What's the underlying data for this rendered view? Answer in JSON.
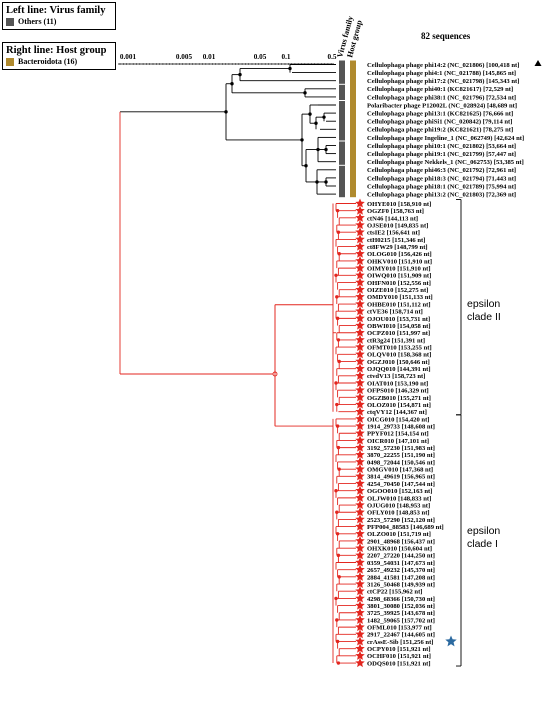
{
  "legend_left": {
    "title": "Left line: Virus family",
    "item_label": "Others (11)",
    "item_color": "#555555"
  },
  "legend_right": {
    "title": "Right line: Host group",
    "item_label": "Bacteroidota (16)",
    "item_color": "#b08a2e"
  },
  "sequence_count": "82 sequences",
  "column_headers": [
    "Virus family",
    "Host group"
  ],
  "scale_ticks": [
    "0.001",
    "0.005",
    "0.01",
    "0.05",
    "0.1",
    "0.5"
  ],
  "top_clade_leaves": [
    "Cellulophaga phage phi14:2 (NC_021806) [100,418 nt]",
    "Cellulophaga phage phi4:1 (NC_021788) [145,865 nt]",
    "Cellulophaga phage phi17:2 (NC_021798) [145,343 nt]",
    "Cellulophaga phage phi40:1 (KC821617) [72,529 nt]",
    "Cellulophaga phage phi38:1 (NC_021796) [72,534 nt]",
    "Polaribacter phage P12002L (NC_028924) [48,689 nt]",
    "Cellulophaga phage phi13:1 (KC821625) [76,666 nt]",
    "Cellulophaga phage phiSi1 (NC_020842) [79,114 nt]",
    "Cellulophaga phage phi19:2 (KC821621) [78,275 nt]",
    "Cellulophaga phage Ingeline_1 (NC_062749) [42,624 nt]",
    "Cellulophaga phage phi10:1 (NC_021802) [53,664 nt]",
    "Cellulophaga phage phi19:1 (NC_021799) [57,447 nt]",
    "Cellulophaga phage Nekkels_1 (NC_062753) [53,385 nt]",
    "Cellulophaga phage phi46:3 (NC_021792) [72,961 nt]",
    "Cellulophaga phage phi18:3 (NC_021794) [71,443 nt]",
    "Cellulophaga phage phi18:1 (NC_021789) [75,994 nt]",
    "Cellulophaga phage phi13:2 (NC_021803) [72,369 nt]"
  ],
  "clade_II_leaves": [
    "OHYE010 [158,910 nt]",
    "OGZF0 [158,763 nt]",
    "ctN46 [144,113 nt]",
    "OJSE010 [149,835 nt]",
    "ctsIE2 [156,641 nt]",
    "ctH0215 [151,346 nt]",
    "ct8FW29 [148,799 nt]",
    "OLOG010 [156,426 nt]",
    "OHKV010 [151,910 nt]",
    "OIMY010 [151,910 nt]",
    "OIWQ010 [151,909 nt]",
    "OHFN010 [152,556 nt]",
    "OIZE010 [152,275 nt]",
    "OMDY010 [151,133 nt]",
    "OHBE010 [151,112 nt]",
    "ctVE36 [158,714 nt]",
    "OJOU010 [153,731 nt]",
    "OBWI010 [154,058 nt]",
    "OCPZ010 [151,997 nt]",
    "ctR3g24 [151,391 nt]",
    "OFMT010 [153,255 nt]",
    "OLQV010 [158,368 nt]",
    "OGZJ010 [150,646 nt]",
    "OJQQ010 [144,391 nt]",
    "ctvdV13 [158,723 nt]",
    "OIAT010 [153,190 nt]",
    "OFPS010 [146,329 nt]",
    "OGZB010 [155,271 nt]",
    "OLOZ010 [154,871 nt]",
    "ctqVY12 [144,367 nt]"
  ],
  "clade_I_leaves": [
    "OICG010 [154,420 nt]",
    "1914_29733 [148,608 nt]",
    "PPYF012 [154,154 nt]",
    "OICR010 [147,101 nt]",
    "3192_57230 [151,983 nt]",
    "3870_22255 [151,190 nt]",
    "0498_72044 [150,546 nt]",
    "OMGV010 [147,368 nt]",
    "3814_49619 [156,965 nt]",
    "4254_70450 [147,544 nt]",
    "OGOO010 [152,163 nt]",
    "OLJW010 [148,833 nt]",
    "OJUG010 [148,953 nt]",
    "OFLY010 [148,853 nt]",
    "2523_57290 [152,120 nt]",
    "PFP004_88583 [146,689 nt]",
    "OLZO010 [151,719 nt]",
    "2901_48968 [156,437 nt]",
    "OHXK010 [150,604 nt]",
    "2207_27220 [144,250 nt]",
    "0359_54031 [147,673 nt]",
    "2657_49232 [145,370 nt]",
    "2884_41581 [147,208 nt]",
    "3126_50468 [149,939 nt]",
    "ctCP22 [155,962 nt]",
    "4298_68366 [150,730 nt]",
    "3801_30080 [152,036 nt]",
    "3725_39925 [143,678 nt]",
    "1482_59065 [157,702 nt]",
    "OFML010 [153,977 nt]",
    "2917_22467 [144,605 nt]",
    "crAssE-Sib [151,256 nt]",
    "OCPY010 [151,921 nt]",
    "OCHF010 [151,921 nt]",
    "ODQS010 [151,921 nt]"
  ],
  "clade_labels": {
    "clade_II": "epsilon\nclade II",
    "clade_I": "epsilon\nclade I"
  },
  "colors": {
    "epsilon_branch": "#e3261f",
    "star": "#e3261f",
    "highlight_star": "#2c6aa0",
    "others_strip": "#555555",
    "bacteroidota_strip": "#b08a2e",
    "black_branch": "#000000"
  }
}
